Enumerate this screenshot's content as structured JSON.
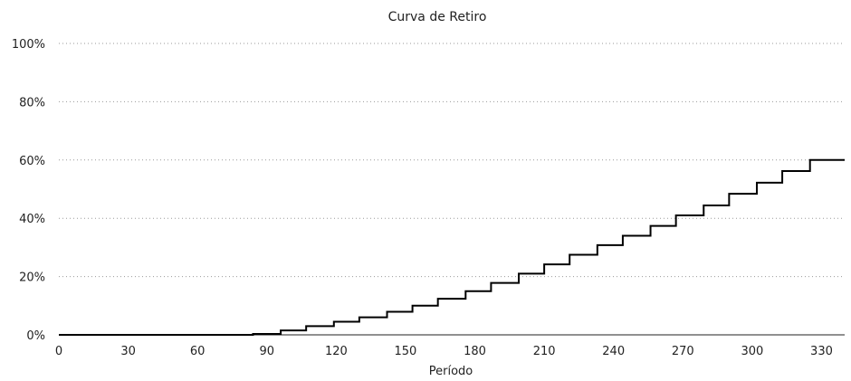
{
  "chart_data": {
    "type": "line",
    "title": "Curva de Retiro",
    "xlabel": "Período",
    "ylabel": "",
    "xlim": [
      0,
      340
    ],
    "ylim": [
      0,
      100
    ],
    "x_ticks": [
      0,
      30,
      60,
      90,
      120,
      150,
      180,
      210,
      240,
      270,
      300,
      330
    ],
    "y_ticks": [
      0,
      20,
      40,
      60,
      80,
      100
    ],
    "y_tick_labels": [
      "0%",
      "20%",
      "40%",
      "60%",
      "80%",
      "100%"
    ],
    "grid": true,
    "legend": "none",
    "line_style": "step",
    "line_color": "#000000",
    "series": [
      {
        "x": [
          0,
          84,
          96,
          107,
          119,
          130,
          142,
          153,
          164,
          176,
          187,
          199,
          210,
          221,
          233,
          244,
          256,
          267,
          279,
          290,
          302,
          313,
          325,
          336,
          340
        ],
        "values": [
          0,
          0.3,
          1.5,
          3,
          4.5,
          6,
          7.9,
          10,
          12.4,
          15,
          17.8,
          21,
          24.2,
          27.5,
          30.8,
          34,
          37.4,
          41,
          44.4,
          48.4,
          52.2,
          56.2,
          60,
          60,
          60
        ]
      }
    ]
  }
}
